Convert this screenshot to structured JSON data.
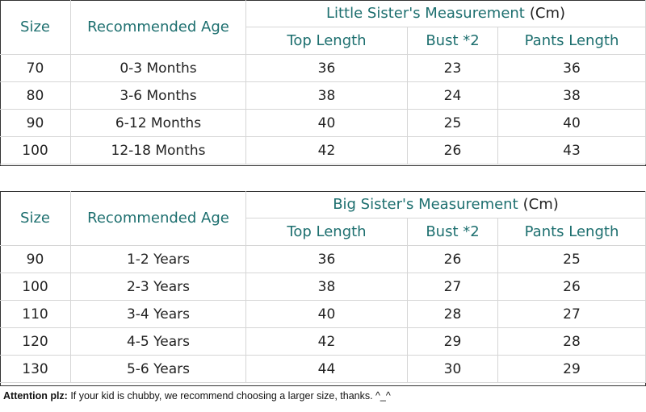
{
  "tables": [
    {
      "size_header": "Size",
      "age_header": "Recommended Age",
      "group_title": "Little Sister's Measurement",
      "group_unit": "(Cm)",
      "columns": [
        "Top Length",
        "Bust *2",
        "Pants Length"
      ],
      "rows": [
        [
          "70",
          "0-3 Months",
          "36",
          "23",
          "36"
        ],
        [
          "80",
          "3-6 Months",
          "38",
          "24",
          "38"
        ],
        [
          "90",
          "6-12 Months",
          "40",
          "25",
          "40"
        ],
        [
          "100",
          "12-18 Months",
          "42",
          "26",
          "43"
        ]
      ]
    },
    {
      "size_header": "Size",
      "age_header": "Recommended Age",
      "group_title": "Big Sister's Measurement",
      "group_unit": "(Cm)",
      "columns": [
        "Top Length",
        "Bust *2",
        "Pants Length"
      ],
      "rows": [
        [
          "90",
          "1-2 Years",
          "36",
          "26",
          "25"
        ],
        [
          "100",
          "2-3 Years",
          "38",
          "27",
          "26"
        ],
        [
          "110",
          "3-4 Years",
          "40",
          "28",
          "27"
        ],
        [
          "120",
          "4-5 Years",
          "42",
          "29",
          "28"
        ],
        [
          "130",
          "5-6 Years",
          "44",
          "30",
          "29"
        ]
      ]
    }
  ],
  "note": {
    "label": "Attention plz:",
    "text": "If your kid is chubby, we recommend choosing a larger size, thanks. ^_^"
  }
}
